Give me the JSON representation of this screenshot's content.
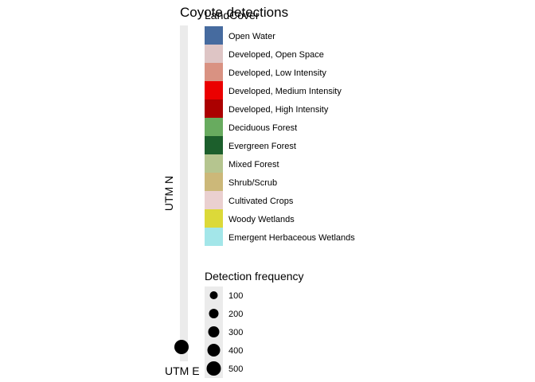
{
  "chart_data": {
    "type": "scatter",
    "title": "Coyote detections",
    "xlabel": "UTM E",
    "ylabel": "UTM N",
    "points": [
      {
        "frequency": 500
      }
    ],
    "colors": {
      "panel_background": "#ebebeb",
      "point": "#000000"
    },
    "legend": {
      "placement": "right",
      "landcover": {
        "title": "LandCover",
        "items": [
          {
            "label": "Open Water",
            "color": "#466b9f"
          },
          {
            "label": "Developed, Open Space",
            "color": "#dec5c5"
          },
          {
            "label": "Developed, Low Intensity",
            "color": "#d99282"
          },
          {
            "label": "Developed, Medium Intensity",
            "color": "#eb0000"
          },
          {
            "label": "Developed, High Intensity",
            "color": "#ab0000"
          },
          {
            "label": "Deciduous Forest",
            "color": "#68ab5f"
          },
          {
            "label": "Evergreen Forest",
            "color": "#1c5f2c"
          },
          {
            "label": "Mixed Forest",
            "color": "#b5c58f"
          },
          {
            "label": "Shrub/Scrub",
            "color": "#ccb879"
          },
          {
            "label": "Cultivated Crops",
            "color": "#ead0d0"
          },
          {
            "label": "Woody Wetlands",
            "color": "#dcd939"
          },
          {
            "label": "Emergent Herbaceous Wetlands",
            "color": "#a3e6e9"
          }
        ]
      },
      "detection": {
        "title": "Detection frequency",
        "values": [
          100,
          200,
          300,
          400,
          500
        ]
      }
    }
  }
}
